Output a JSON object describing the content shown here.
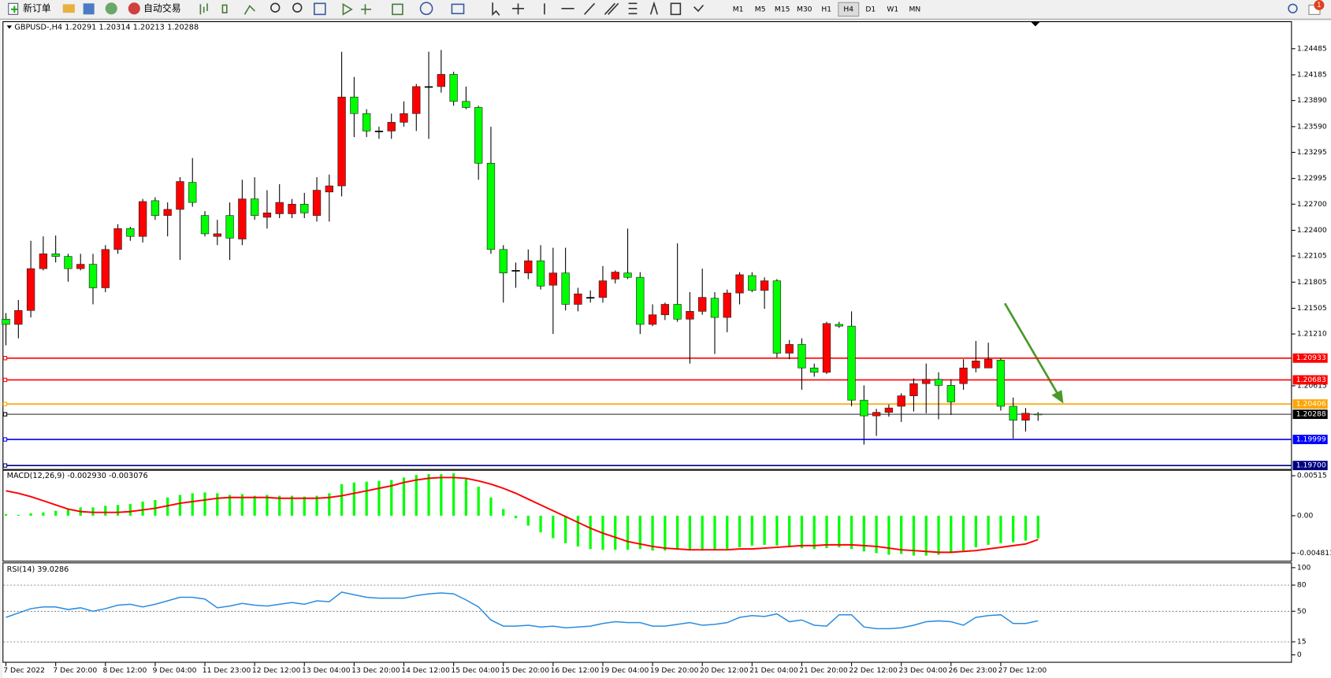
{
  "toolbar": {
    "new_order": "新订单",
    "auto_trading": "自动交易",
    "timeframes": [
      "M1",
      "M5",
      "M15",
      "M30",
      "H1",
      "H4",
      "D1",
      "W1",
      "MN"
    ],
    "badge": "1"
  },
  "chart_data": [
    {
      "type": "candlestick",
      "title": "GBPUSD-,H4",
      "categories": [
        "7 Dec 2022",
        null,
        null,
        null,
        "7 Dec 20:00",
        null,
        null,
        null,
        "8 Dec 12:00",
        null,
        null,
        null,
        "9 Dec 04:00",
        null,
        null,
        null,
        "11 Dec 23:00",
        null,
        null,
        null,
        "12 Dec 12:00",
        null,
        null,
        null,
        "13 Dec 04:00",
        null,
        null,
        null,
        "13 Dec 20:00",
        null,
        null,
        null,
        "14 Dec 12:00",
        null,
        null,
        null,
        "15 Dec 04:00",
        null,
        null,
        null,
        "15 Dec 20:00",
        null,
        null,
        null,
        "16 Dec 12:00",
        null,
        null,
        null,
        "19 Dec 04:00",
        null,
        null,
        null,
        "19 Dec 20:00",
        null,
        null,
        null,
        "20 Dec 12:00",
        null,
        null,
        null,
        "21 Dec 04:00",
        null,
        null,
        null,
        "21 Dec 20:00",
        null,
        null,
        null,
        "22 Dec 12:00",
        null,
        null,
        null,
        "23 Dec 04:00",
        null,
        null,
        null,
        "26 Dec 23:00",
        null,
        null,
        null,
        "27 Dec 12:00",
        null,
        null,
        null
      ],
      "open": [
        1.2138,
        1.2132,
        1.2148,
        1.2196,
        1.2213,
        1.221,
        1.2196,
        1.2201,
        1.2174,
        1.2218,
        1.2242,
        1.2233,
        1.2274,
        1.2257,
        1.2264,
        1.2295,
        1.2257,
        1.2233,
        1.2257,
        1.223,
        1.2276,
        1.2255,
        1.2259,
        1.2259,
        1.227,
        1.2257,
        1.2284,
        1.2291,
        1.2393,
        1.2374,
        1.2354,
        1.2354,
        1.2364,
        1.2374,
        1.2405,
        1.2405,
        1.2419,
        1.2388,
        1.2381,
        1.2317,
        1.2218,
        1.2194,
        1.2191,
        1.2205,
        1.2177,
        1.2191,
        1.2155,
        1.2163,
        1.2163,
        1.2184,
        1.2191,
        1.2186,
        1.2132,
        1.2143,
        1.2155,
        1.2138,
        1.2147,
        1.2162,
        1.214,
        1.2168,
        1.2188,
        1.2171,
        1.2182,
        1.2099,
        1.2109,
        1.2082,
        1.2077,
        1.2132,
        1.213,
        1.2045,
        1.2027,
        1.2031,
        1.2038,
        1.205,
        1.2064,
        1.2069,
        1.2062,
        1.2064,
        1.2082,
        1.2082,
        1.2091,
        1.2038,
        1.2022,
        1.20291
      ],
      "high": [
        1.2145,
        1.216,
        1.2228,
        1.2233,
        1.2234,
        1.2213,
        1.2213,
        1.2213,
        1.2223,
        1.2247,
        1.2244,
        1.2276,
        1.2278,
        1.2272,
        1.2301,
        1.2323,
        1.2262,
        1.2252,
        1.2272,
        1.2298,
        1.2301,
        1.2286,
        1.2293,
        1.2276,
        1.2283,
        1.2301,
        1.2304,
        1.2445,
        1.2416,
        1.2379,
        1.2359,
        1.2374,
        1.2388,
        1.2408,
        1.2445,
        1.2447,
        1.2422,
        1.2405,
        1.2383,
        1.2359,
        1.2223,
        1.2203,
        1.2218,
        1.2223,
        1.222,
        1.222,
        1.2174,
        1.2171,
        1.2199,
        1.2194,
        1.2242,
        1.2192,
        1.2155,
        1.2157,
        1.2225,
        1.2169,
        1.2196,
        1.2169,
        1.2172,
        1.2192,
        1.2192,
        1.2186,
        1.2184,
        1.2114,
        1.2116,
        1.2087,
        1.2135,
        1.2135,
        1.2147,
        1.2062,
        1.2035,
        1.204,
        1.2053,
        1.207,
        1.2087,
        1.2077,
        1.2069,
        1.2092,
        1.2113,
        1.2111,
        1.2093,
        1.2048,
        1.2036,
        1.20314
      ],
      "low": [
        1.2108,
        1.2116,
        1.214,
        1.2194,
        1.2203,
        1.2181,
        1.2194,
        1.2155,
        1.2169,
        1.2213,
        1.2228,
        1.2226,
        1.2252,
        1.2233,
        1.2206,
        1.2267,
        1.2233,
        1.2223,
        1.2206,
        1.2223,
        1.2252,
        1.2242,
        1.2254,
        1.2254,
        1.2254,
        1.225,
        1.225,
        1.2279,
        1.2347,
        1.2347,
        1.2345,
        1.2345,
        1.2359,
        1.2354,
        1.2345,
        1.2398,
        1.2383,
        1.2379,
        1.2298,
        1.2213,
        1.2157,
        1.2174,
        1.2184,
        1.2172,
        1.2121,
        1.2148,
        1.2147,
        1.2157,
        1.2157,
        1.2179,
        1.2184,
        1.2121,
        1.213,
        1.2137,
        1.2135,
        1.2087,
        1.2143,
        1.2098,
        1.2123,
        1.2155,
        1.2169,
        1.215,
        1.2094,
        1.2092,
        1.2057,
        1.2072,
        1.2075,
        1.2128,
        1.2038,
        1.1994,
        1.2004,
        1.2026,
        1.202,
        1.2032,
        1.203,
        1.2023,
        1.2028,
        1.2057,
        1.2077,
        1.2082,
        1.2033,
        1.2001,
        1.2009,
        1.20213
      ],
      "close": [
        1.2132,
        1.2148,
        1.2196,
        1.2213,
        1.221,
        1.2196,
        1.2201,
        1.2174,
        1.2218,
        1.2242,
        1.2233,
        1.2273,
        1.2257,
        1.2264,
        1.2296,
        1.2272,
        1.2236,
        1.2236,
        1.2231,
        1.2276,
        1.2257,
        1.226,
        1.2272,
        1.227,
        1.226,
        1.2286,
        1.2291,
        1.2393,
        1.2374,
        1.2354,
        1.2354,
        1.2364,
        1.2374,
        1.2405,
        1.2405,
        1.2419,
        1.2388,
        1.2381,
        1.2317,
        1.2218,
        1.2191,
        1.2194,
        1.2205,
        1.2176,
        1.2191,
        1.2155,
        1.2167,
        1.2163,
        1.2182,
        1.2192,
        1.2186,
        1.2132,
        1.2143,
        1.2155,
        1.2138,
        1.2147,
        1.2163,
        1.214,
        1.2168,
        1.2189,
        1.2171,
        1.2182,
        1.2099,
        1.2109,
        1.2082,
        1.2077,
        1.2133,
        1.213,
        1.2045,
        1.2027,
        1.2031,
        1.2036,
        1.205,
        1.2064,
        1.2069,
        1.2062,
        1.2043,
        1.2082,
        1.209,
        1.2092,
        1.2038,
        1.2022,
        1.203,
        1.20288
      ],
      "up_color": "#ff0000",
      "down_color": "#00ff00",
      "ylim": [
        1.1966,
        1.248
      ],
      "yticks": [
        1.24485,
        1.24185,
        {
          "value": 1.2389,
          "label": "1.23890"
        },
        {
          "value": 1.2359,
          "label": "1.23590"
        },
        1.23295,
        1.22995,
        {
          "value": 1.227,
          "label": "1.22700"
        },
        {
          "value": 1.224,
          "label": "1.22400"
        },
        1.22105,
        1.21805,
        1.21505,
        {
          "value": 1.2121,
          "label": "1.21210"
        },
        1.20615
      ],
      "hlines": [
        {
          "value": 1.20933,
          "color": "#ff0000"
        },
        {
          "value": 1.20683,
          "color": "#ff0000"
        },
        {
          "value": 1.20406,
          "color": "#ffa500"
        },
        {
          "value": 1.20288,
          "color": "#000000"
        },
        {
          "value": 1.19999,
          "color": "#0000ff"
        },
        {
          "value": {
            "value": 1.197,
            "label": "1.19700"
          },
          "color": "#000080"
        }
      ]
    },
    {
      "type": "macd",
      "title": "MACD(12,26,9) -0.002930 -0.003076",
      "series": [
        {
          "style": "bar",
          "color": "#00ff00",
          "values": [
            0.00021,
            0.00011,
            0.00032,
            0.00043,
            0.00064,
            0.00086,
            0.00107,
            0.00107,
            0.00128,
            0.00139,
            0.0015,
            0.00182,
            0.00203,
            0.00235,
            0.00268,
            0.00289,
            0.003,
            0.00289,
            0.00268,
            0.00278,
            0.00257,
            0.00268,
            0.00257,
            0.00257,
            0.00246,
            0.00257,
            0.00289,
            0.00407,
            0.00428,
            0.00439,
            0.00449,
            0.0046,
            0.00492,
            0.00524,
            0.00535,
            0.00535,
            0.00546,
            0.00482,
            0.00375,
            0.00235,
            0.00086,
            -0.00032,
            -0.00128,
            -0.00214,
            -0.00289,
            -0.00353,
            -0.00396,
            -0.00428,
            -0.00439,
            -0.00439,
            -0.00439,
            -0.00428,
            -0.00449,
            -0.00449,
            -0.00439,
            -0.00449,
            -0.00449,
            -0.00439,
            -0.00428,
            -0.00407,
            -0.00385,
            -0.00375,
            -0.00385,
            -0.00407,
            -0.00417,
            -0.00428,
            -0.00417,
            -0.00407,
            -0.00428,
            -0.0046,
            -0.00482,
            -0.00503,
            -0.00492,
            -0.00514,
            -0.00514,
            -0.00503,
            -0.00482,
            -0.00449,
            -0.00407,
            -0.00375,
            -0.00353,
            -0.00342,
            -0.00321,
            -0.00293
          ]
        },
        {
          "style": "line",
          "color": "#ff0000",
          "values": [
            0.00321,
            0.00289,
            0.00246,
            0.00193,
            0.00139,
            0.00086,
            0.00054,
            0.00043,
            0.00043,
            0.00043,
            0.00054,
            0.00075,
            0.00096,
            0.00128,
            0.00161,
            0.00182,
            0.00203,
            0.00225,
            0.00235,
            0.00235,
            0.00235,
            0.00235,
            0.00225,
            0.00225,
            0.00225,
            0.00225,
            0.00235,
            0.00257,
            0.00289,
            0.00321,
            0.00353,
            0.00385,
            0.00428,
            0.0046,
            0.00482,
            0.00492,
            0.00492,
            0.00482,
            0.00449,
            0.00407,
            0.00353,
            0.00289,
            0.00214,
            0.00139,
            0.00064,
            -0.00011,
            -0.00086,
            -0.00161,
            -0.00225,
            -0.00278,
            -0.00332,
            -0.00364,
            -0.00396,
            -0.00417,
            -0.00428,
            -0.00439,
            -0.00439,
            -0.00439,
            -0.00439,
            -0.00428,
            -0.00428,
            -0.00417,
            -0.00407,
            -0.00396,
            -0.00385,
            -0.00385,
            -0.00375,
            -0.00375,
            -0.00375,
            -0.00385,
            -0.00396,
            -0.00417,
            -0.00439,
            -0.00449,
            -0.0046,
            -0.00471,
            -0.00471,
            -0.0046,
            -0.00449,
            -0.00428,
            -0.00407,
            -0.00385,
            -0.00364,
            -0.003076
          ]
        }
      ],
      "ylim": [
        -0.0058,
        0.0058
      ],
      "yticks": [
        0.00515,
        {
          "value": 0,
          "label": "0.00"
        },
        {
          "value": -0.004811,
          "label": "-0.004811"
        }
      ]
    },
    {
      "type": "line",
      "title": "RSI(14) 39.0286",
      "color": "#2a8ce0",
      "values": [
        43,
        48,
        53,
        55,
        55,
        52,
        54,
        50,
        53,
        57,
        58,
        55,
        58,
        62,
        66,
        66,
        64,
        54,
        56,
        59,
        57,
        56,
        58,
        60,
        58,
        62,
        61,
        72,
        69,
        66,
        65,
        65,
        65,
        68,
        70,
        71,
        70,
        63,
        55,
        40,
        33,
        33,
        34,
        32,
        33,
        31,
        32,
        33,
        36,
        38,
        37,
        37,
        33,
        33,
        35,
        37,
        34,
        35,
        37,
        43,
        45,
        44,
        47,
        38,
        40,
        34,
        33,
        46,
        46,
        32,
        30,
        30,
        31,
        34,
        38,
        39,
        38,
        34,
        43,
        45,
        46,
        36,
        36,
        39.0286
      ],
      "ylim": [
        -8,
        105
      ],
      "yticks": [
        100,
        80,
        50,
        15,
        0
      ]
    }
  ]
}
